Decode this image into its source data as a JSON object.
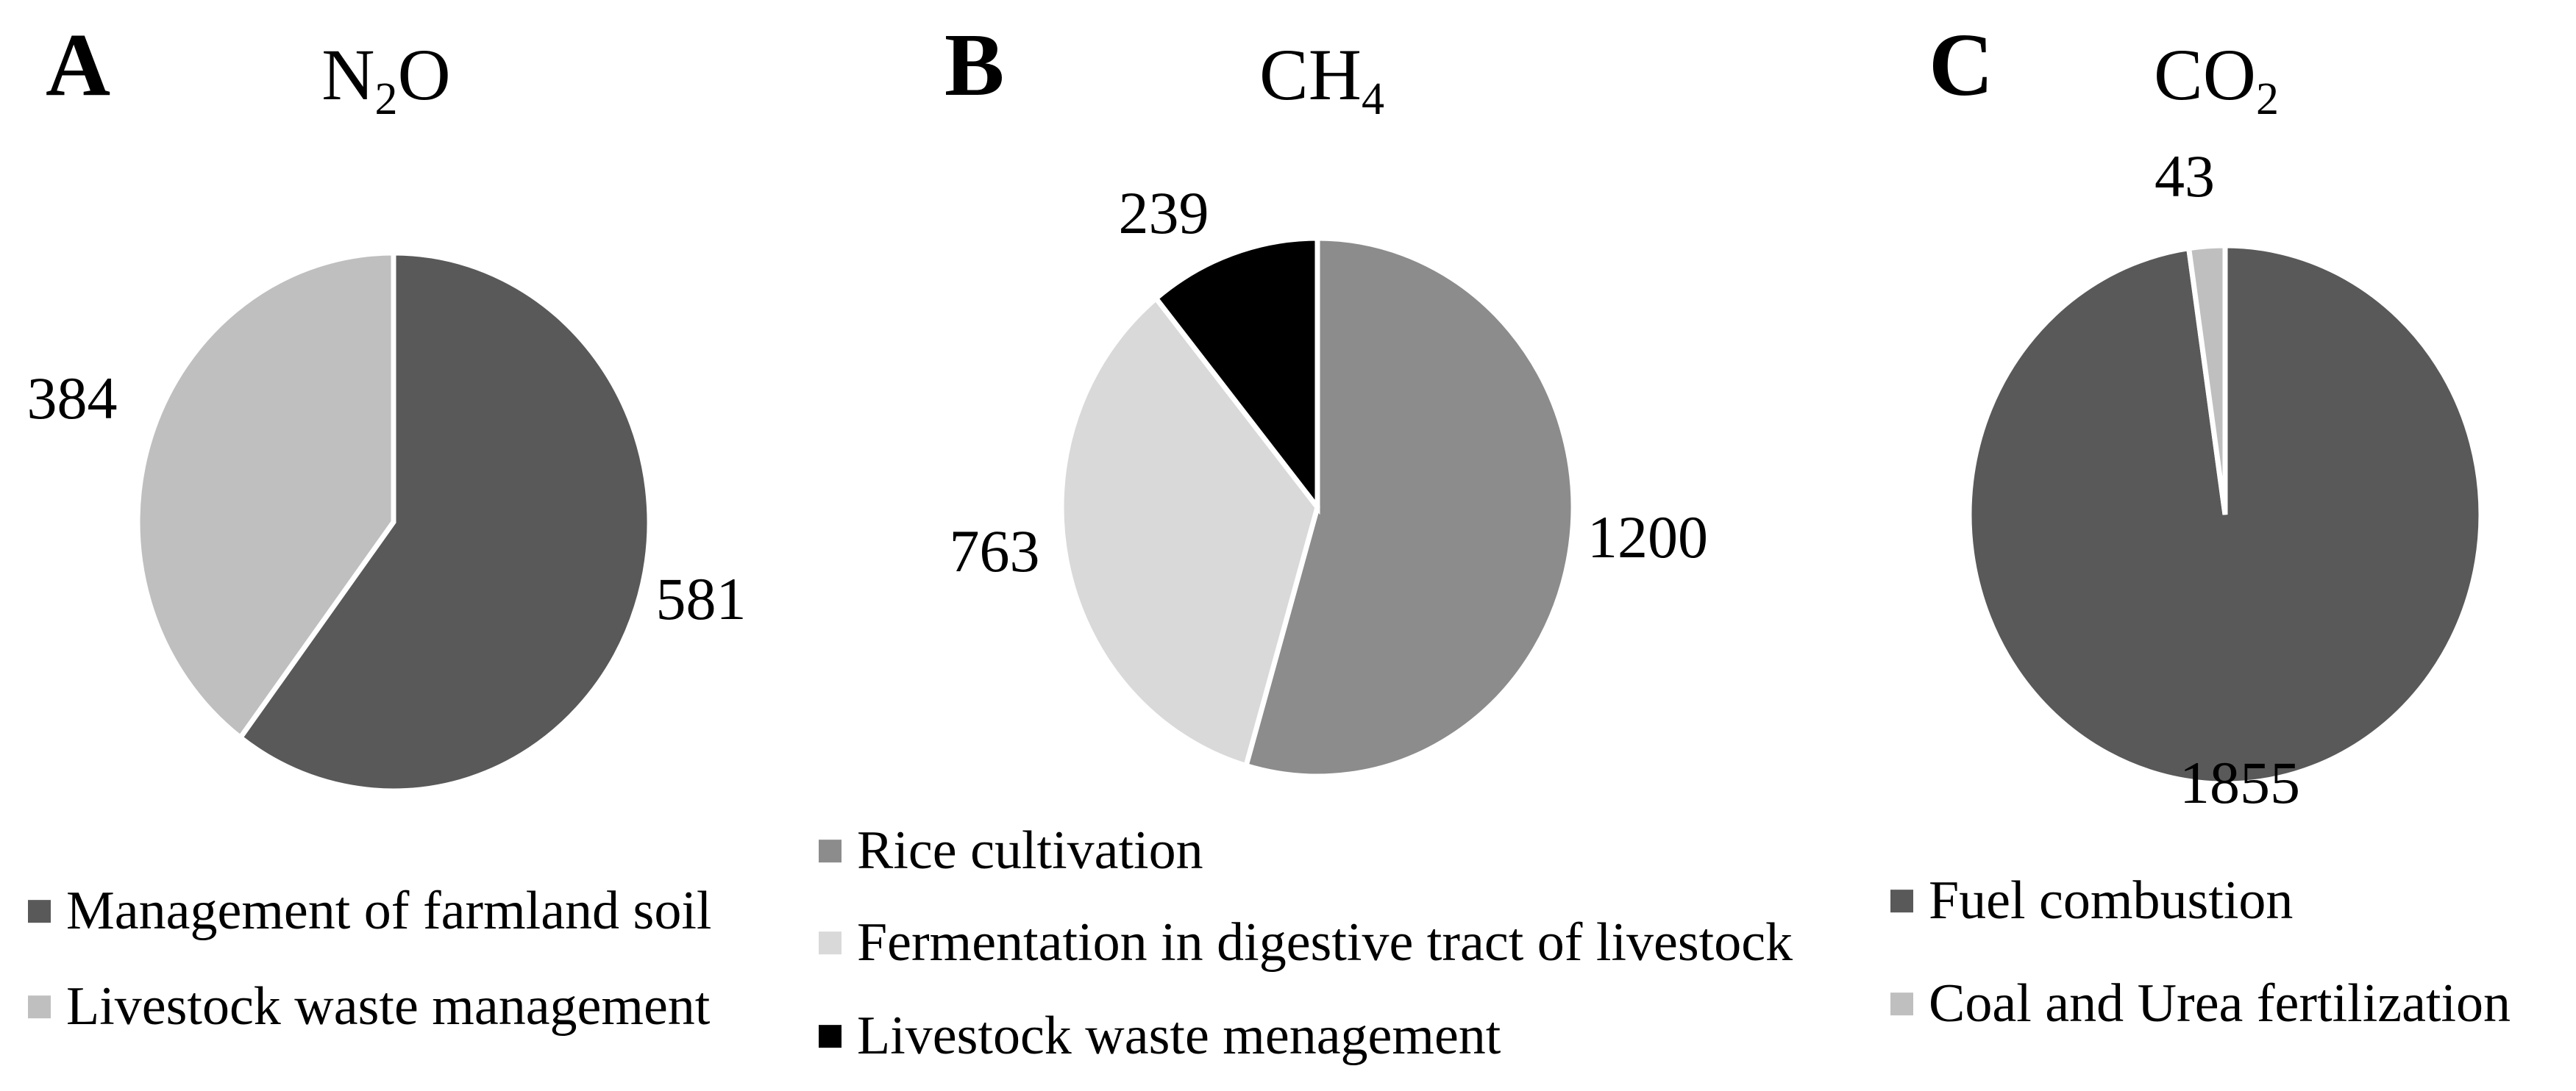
{
  "figure": {
    "background": "#ffffff",
    "text_color": "#000000",
    "slice_border_color": "#ffffff"
  },
  "panels": [
    {
      "letter": "A",
      "title": {
        "pre": "N",
        "sub": "2",
        "post": "O"
      },
      "pie": {
        "slices": [
          {
            "label": "Management of farmland soil",
            "value": 581,
            "color": "#595959"
          },
          {
            "label": "Livestock waste management",
            "value": 384,
            "color": "#bfbfbf"
          }
        ]
      },
      "legend": [
        {
          "label": "Management of farmland soil",
          "color": "#595959"
        },
        {
          "label": "Livestock waste management",
          "color": "#bfbfbf"
        }
      ]
    },
    {
      "letter": "B",
      "title": {
        "pre": "CH",
        "sub": "4",
        "post": ""
      },
      "pie": {
        "slices": [
          {
            "label": "Rice cultivation",
            "value": 1200,
            "color": "#8c8c8c"
          },
          {
            "label": "Fermentation in digestive tract of livestock",
            "value": 763,
            "color": "#d9d9d9"
          },
          {
            "label": "Livestock waste menagement",
            "value": 239,
            "color": "#000000"
          }
        ]
      },
      "legend": [
        {
          "label": "Rice cultivation",
          "color": "#8c8c8c"
        },
        {
          "label": "Fermentation in digestive tract of livestock",
          "color": "#d9d9d9"
        },
        {
          "label": "Livestock waste menagement",
          "color": "#000000"
        }
      ]
    },
    {
      "letter": "C",
      "title": {
        "pre": "CO",
        "sub": "2",
        "post": ""
      },
      "pie": {
        "slices": [
          {
            "label": "Fuel combustion",
            "value": 1855,
            "color": "#595959"
          },
          {
            "label": "Coal and Urea fertilization",
            "value": 43,
            "color": "#bfbfbf"
          }
        ]
      },
      "legend": [
        {
          "label": "Fuel combustion",
          "color": "#595959"
        },
        {
          "label": "Coal and Urea fertilization",
          "color": "#bfbfbf"
        }
      ]
    }
  ],
  "chart_data": [
    {
      "type": "pie",
      "panel": "A",
      "title": "N₂O",
      "categories": [
        "Management of farmland soil",
        "Livestock waste management"
      ],
      "values": [
        581,
        384
      ],
      "colors": [
        "#595959",
        "#bfbfbf"
      ],
      "data_labels": [
        "581",
        "384"
      ],
      "start_angle_deg": 0,
      "direction": "clockwise",
      "legend_position": "below"
    },
    {
      "type": "pie",
      "panel": "B",
      "title": "CH₄",
      "categories": [
        "Rice cultivation",
        "Fermentation in digestive tract of livestock",
        "Livestock waste menagement"
      ],
      "values": [
        1200,
        763,
        239
      ],
      "colors": [
        "#8c8c8c",
        "#d9d9d9",
        "#000000"
      ],
      "data_labels": [
        "1200",
        "763",
        "239"
      ],
      "start_angle_deg": 0,
      "direction": "clockwise",
      "legend_position": "below"
    },
    {
      "type": "pie",
      "panel": "C",
      "title": "CO₂",
      "categories": [
        "Fuel combustion",
        "Coal and Urea fertilization"
      ],
      "values": [
        1855,
        43
      ],
      "colors": [
        "#595959",
        "#bfbfbf"
      ],
      "data_labels": [
        "1855",
        "43"
      ],
      "start_angle_deg": 0,
      "direction": "clockwise",
      "legend_position": "below"
    }
  ]
}
